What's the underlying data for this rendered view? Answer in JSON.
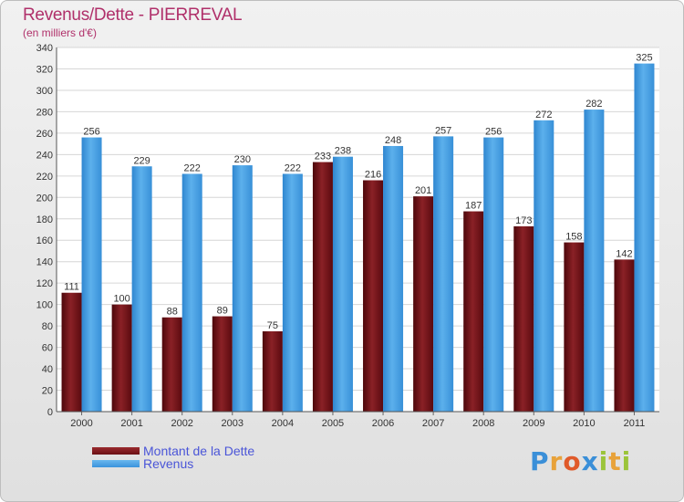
{
  "header": {
    "title": "Revenus/Dette - PIERREVAL",
    "subtitle": "(en milliers d'€)"
  },
  "logo": {
    "letters": [
      "P",
      "r",
      "o",
      "x",
      "i",
      "t",
      "i"
    ],
    "colors": [
      "#3a8fd8",
      "#e8a23a",
      "#e05a2a",
      "#3a8fd8",
      "#9bc43a",
      "#e8a23a",
      "#9bc43a"
    ]
  },
  "legend": [
    {
      "label": "Montant de la Dette",
      "color": "#6b0f14"
    },
    {
      "label": "Revenus",
      "color": "#3a93dc"
    }
  ],
  "chart_data": {
    "type": "bar",
    "title": "Revenus/Dette - PIERREVAL",
    "subtitle": "(en milliers d'€)",
    "xlabel": "",
    "ylabel": "",
    "categories": [
      "2000",
      "2001",
      "2002",
      "2003",
      "2004",
      "2005",
      "2006",
      "2007",
      "2008",
      "2009",
      "2010",
      "2011"
    ],
    "series": [
      {
        "name": "Montant de la Dette",
        "color": "#6b0f14",
        "values": [
          111,
          100,
          88,
          89,
          75,
          233,
          216,
          201,
          187,
          173,
          158,
          142
        ]
      },
      {
        "name": "Revenus",
        "color": "#3a93dc",
        "values": [
          256,
          229,
          222,
          230,
          222,
          238,
          248,
          257,
          256,
          272,
          282,
          325
        ]
      }
    ],
    "ylim": [
      0,
      340
    ],
    "yticks": [
      0,
      20,
      40,
      60,
      80,
      100,
      120,
      140,
      160,
      180,
      200,
      220,
      240,
      260,
      280,
      300,
      320,
      340
    ],
    "grid": true,
    "legend_position": "bottom-left"
  }
}
